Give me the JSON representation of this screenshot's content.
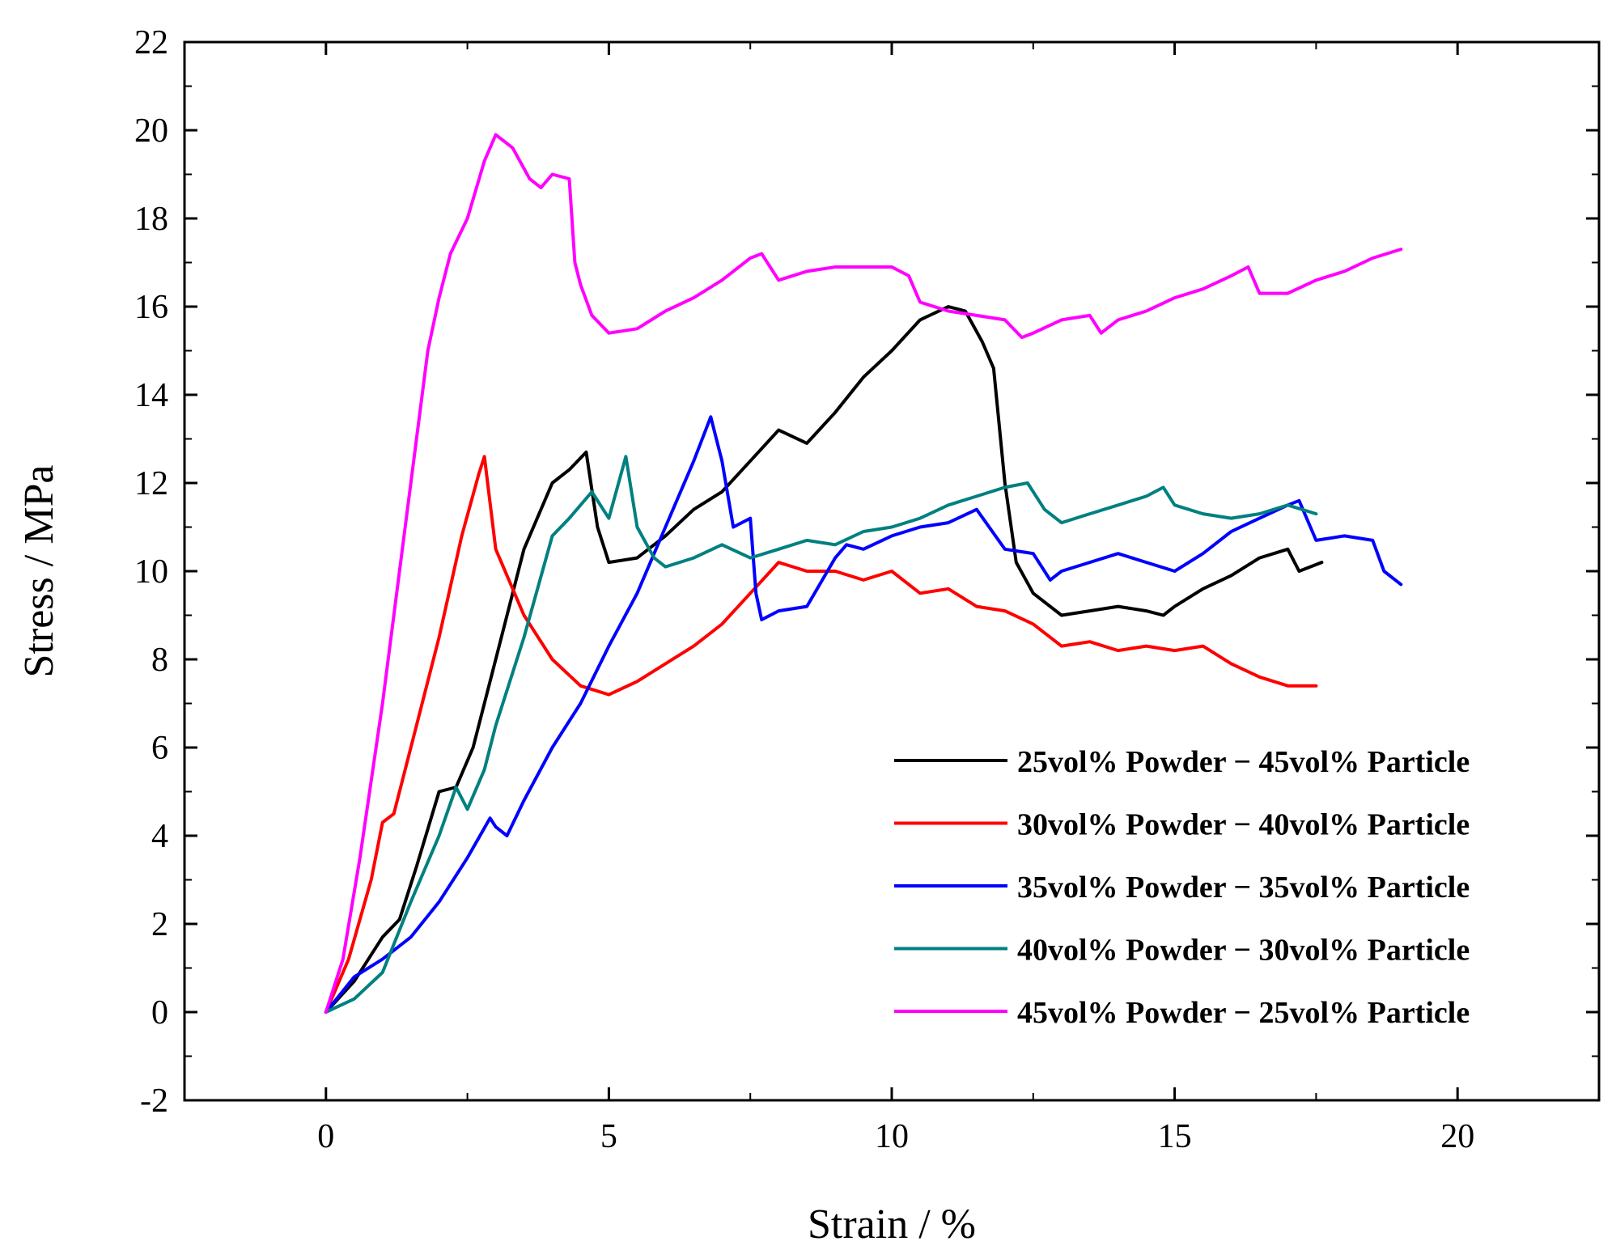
{
  "chart_data": {
    "type": "line",
    "title": "",
    "xlabel": "Strain / %",
    "ylabel": "Stress / MPa",
    "xlim": [
      -2.5,
      22.5
    ],
    "ylim": [
      -2,
      22
    ],
    "xticks": [
      0,
      5,
      10,
      15,
      20
    ],
    "xtick_labels": [
      "0",
      "5",
      "10",
      "15",
      "20"
    ],
    "yticks": [
      -2,
      0,
      2,
      4,
      6,
      8,
      10,
      12,
      14,
      16,
      18,
      20,
      22
    ],
    "ytick_labels": [
      "-2",
      "0",
      "2",
      "4",
      "6",
      "8",
      "10",
      "12",
      "14",
      "16",
      "18",
      "20",
      "22"
    ],
    "grid": false,
    "legend_position": "bottom-right",
    "series": [
      {
        "name": "25vol% Powder − 45vol% Particle",
        "color": "#000000",
        "x": [
          0,
          0.5,
          1,
          1.3,
          1.6,
          2.0,
          2.3,
          2.6,
          3.0,
          3.5,
          4.0,
          4.3,
          4.6,
          4.8,
          5.0,
          5.5,
          6.0,
          6.5,
          7.0,
          7.5,
          8.0,
          8.5,
          9.0,
          9.5,
          10.0,
          10.5,
          11.0,
          11.3,
          11.6,
          11.8,
          12.0,
          12.2,
          12.5,
          13.0,
          13.5,
          14.0,
          14.5,
          14.8,
          15.0,
          15.5,
          16.0,
          16.5,
          17.0,
          17.2,
          17.6
        ],
        "y": [
          0,
          0.7,
          1.7,
          2.1,
          3.3,
          5.0,
          5.1,
          6.0,
          8.0,
          10.5,
          12.0,
          12.3,
          12.7,
          11.0,
          10.2,
          10.3,
          10.8,
          11.4,
          11.8,
          12.5,
          13.2,
          12.9,
          13.6,
          14.4,
          15.0,
          15.7,
          16.0,
          15.9,
          15.2,
          14.6,
          12.0,
          10.2,
          9.5,
          9.0,
          9.1,
          9.2,
          9.1,
          9.0,
          9.2,
          9.6,
          9.9,
          10.3,
          10.5,
          10.0,
          10.2
        ]
      },
      {
        "name": "30vol% Powder − 40vol% Particle",
        "color": "#ff0000",
        "x": [
          0,
          0.4,
          0.8,
          1.0,
          1.2,
          1.5,
          2.0,
          2.4,
          2.7,
          2.8,
          3.0,
          3.5,
          4.0,
          4.5,
          5.0,
          5.5,
          6.0,
          6.5,
          7.0,
          7.5,
          8.0,
          8.5,
          9.0,
          9.5,
          10.0,
          10.5,
          11.0,
          11.5,
          12.0,
          12.5,
          13.0,
          13.5,
          14.0,
          14.5,
          15.0,
          15.5,
          16.0,
          16.5,
          17.0,
          17.5
        ],
        "y": [
          0,
          1.2,
          3.0,
          4.3,
          4.5,
          6.0,
          8.5,
          10.8,
          12.2,
          12.6,
          10.5,
          9.0,
          8.0,
          7.4,
          7.2,
          7.5,
          7.9,
          8.3,
          8.8,
          9.5,
          10.2,
          10.0,
          10.0,
          9.8,
          10.0,
          9.5,
          9.6,
          9.2,
          9.1,
          8.8,
          8.3,
          8.4,
          8.2,
          8.3,
          8.2,
          8.3,
          7.9,
          7.6,
          7.4,
          7.4
        ]
      },
      {
        "name": "35vol% Powder − 35vol% Particle",
        "color": "#0000ff",
        "x": [
          0,
          0.5,
          1.0,
          1.5,
          2.0,
          2.5,
          2.9,
          3.0,
          3.2,
          3.5,
          4.0,
          4.5,
          5.0,
          5.5,
          6.0,
          6.5,
          6.8,
          7.0,
          7.2,
          7.5,
          7.6,
          7.7,
          8.0,
          8.5,
          9.0,
          9.2,
          9.5,
          10.0,
          10.5,
          11.0,
          11.5,
          12.0,
          12.5,
          12.8,
          13.0,
          13.5,
          14.0,
          14.5,
          15.0,
          15.5,
          16.0,
          16.5,
          17.0,
          17.2,
          17.5,
          18.0,
          18.5,
          18.7,
          19.0
        ],
        "y": [
          0,
          0.8,
          1.2,
          1.7,
          2.5,
          3.5,
          4.4,
          4.2,
          4.0,
          4.8,
          6.0,
          7.0,
          8.3,
          9.5,
          11.0,
          12.5,
          13.5,
          12.5,
          11.0,
          11.2,
          9.5,
          8.9,
          9.1,
          9.2,
          10.3,
          10.6,
          10.5,
          10.8,
          11.0,
          11.1,
          11.4,
          10.5,
          10.4,
          9.8,
          10.0,
          10.2,
          10.4,
          10.2,
          10.0,
          10.4,
          10.9,
          11.2,
          11.5,
          11.6,
          10.7,
          10.8,
          10.7,
          10.0,
          9.7
        ]
      },
      {
        "name": "40vol% Powder − 30vol% Particle",
        "color": "#008080",
        "x": [
          0,
          0.5,
          1.0,
          1.5,
          2.0,
          2.3,
          2.5,
          2.8,
          3.0,
          3.5,
          4.0,
          4.3,
          4.7,
          5.0,
          5.3,
          5.5,
          5.8,
          6.0,
          6.5,
          7.0,
          7.5,
          8.0,
          8.5,
          9.0,
          9.5,
          10.0,
          10.5,
          11.0,
          11.5,
          12.0,
          12.4,
          12.7,
          13.0,
          13.5,
          14.0,
          14.5,
          14.8,
          15.0,
          15.5,
          16.0,
          16.5,
          17.0,
          17.5
        ],
        "y": [
          0,
          0.3,
          0.9,
          2.5,
          4.0,
          5.1,
          4.6,
          5.5,
          6.5,
          8.5,
          10.8,
          11.2,
          11.8,
          11.2,
          12.6,
          11.0,
          10.3,
          10.1,
          10.3,
          10.6,
          10.3,
          10.5,
          10.7,
          10.6,
          10.9,
          11.0,
          11.2,
          11.5,
          11.7,
          11.9,
          12.0,
          11.4,
          11.1,
          11.3,
          11.5,
          11.7,
          11.9,
          11.5,
          11.3,
          11.2,
          11.3,
          11.5,
          11.3
        ]
      },
      {
        "name": "45vol% Powder − 25vol% Particle",
        "color": "#ff00ff",
        "x": [
          0,
          0.3,
          0.6,
          1.0,
          1.4,
          1.8,
          2.0,
          2.2,
          2.5,
          2.8,
          3.0,
          3.3,
          3.6,
          3.8,
          4.0,
          4.3,
          4.4,
          4.5,
          4.7,
          5.0,
          5.5,
          6.0,
          6.5,
          7.0,
          7.5,
          7.7,
          8.0,
          8.5,
          9.0,
          9.5,
          10.0,
          10.3,
          10.5,
          11.0,
          11.5,
          12.0,
          12.3,
          12.5,
          13.0,
          13.5,
          13.7,
          14.0,
          14.5,
          15.0,
          15.5,
          16.0,
          16.3,
          16.5,
          17.0,
          17.5,
          18.0,
          18.5,
          19.0
        ],
        "y": [
          0,
          1.2,
          3.5,
          7.0,
          11.0,
          15.0,
          16.2,
          17.2,
          18.0,
          19.3,
          19.9,
          19.6,
          18.9,
          18.7,
          19.0,
          18.9,
          17.0,
          16.5,
          15.8,
          15.4,
          15.5,
          15.9,
          16.2,
          16.6,
          17.1,
          17.2,
          16.6,
          16.8,
          16.9,
          16.9,
          16.9,
          16.7,
          16.1,
          15.9,
          15.8,
          15.7,
          15.3,
          15.4,
          15.7,
          15.8,
          15.4,
          15.7,
          15.9,
          16.2,
          16.4,
          16.7,
          16.9,
          16.3,
          16.3,
          16.6,
          16.8,
          17.1,
          17.3
        ]
      }
    ]
  }
}
